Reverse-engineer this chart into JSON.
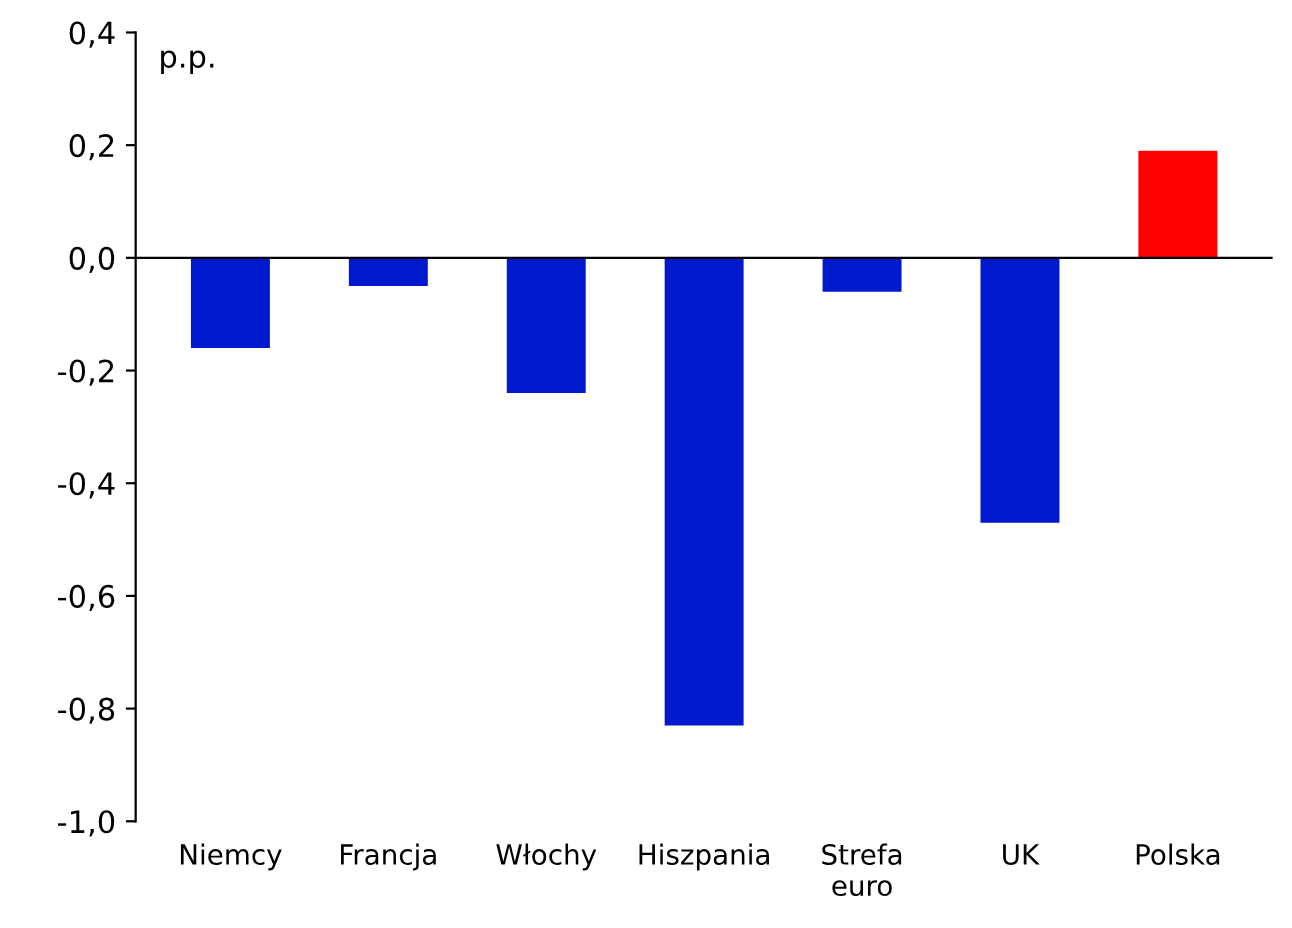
{
  "chart_data": {
    "type": "bar",
    "ylabel": "p.p.",
    "categories": [
      "Niemcy",
      "Francja",
      "Włochy",
      "Hiszpania",
      "Strefa\neuro",
      "UK",
      "Polska"
    ],
    "values": [
      -0.16,
      -0.05,
      -0.24,
      -0.83,
      -0.06,
      -0.47,
      0.19
    ],
    "colors": [
      "#0019cc",
      "#0019cc",
      "#0019cc",
      "#0019cc",
      "#0019cc",
      "#0019cc",
      "#ff0000"
    ],
    "ylim": [
      -1.0,
      0.4
    ],
    "yticks": [
      {
        "value": -1.0,
        "label": "-1,0"
      },
      {
        "value": -0.8,
        "label": "-0,8"
      },
      {
        "value": -0.6,
        "label": "-0,6"
      },
      {
        "value": -0.4,
        "label": "-0,4"
      },
      {
        "value": -0.2,
        "label": "-0,2"
      },
      {
        "value": 0.0,
        "label": "0,0"
      },
      {
        "value": 0.2,
        "label": "0,2"
      },
      {
        "value": 0.4,
        "label": "0,4"
      }
    ]
  }
}
